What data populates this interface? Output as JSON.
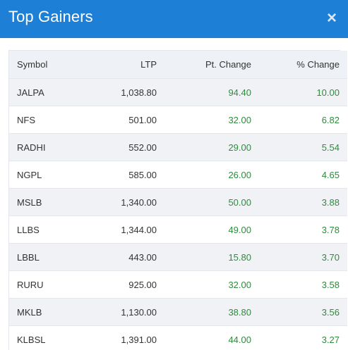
{
  "header": {
    "title": "Top Gainers",
    "close_icon": "×"
  },
  "colors": {
    "header_bg": "#1e7fd6",
    "positive": "#2e8b3c"
  },
  "table": {
    "columns": [
      "Symbol",
      "LTP",
      "Pt. Change",
      "% Change"
    ],
    "rows": [
      {
        "symbol": "JALPA",
        "ltp": "1,038.80",
        "pt_change": "94.40",
        "pct_change": "10.00"
      },
      {
        "symbol": "NFS",
        "ltp": "501.00",
        "pt_change": "32.00",
        "pct_change": "6.82"
      },
      {
        "symbol": "RADHI",
        "ltp": "552.00",
        "pt_change": "29.00",
        "pct_change": "5.54"
      },
      {
        "symbol": "NGPL",
        "ltp": "585.00",
        "pt_change": "26.00",
        "pct_change": "4.65"
      },
      {
        "symbol": "MSLB",
        "ltp": "1,340.00",
        "pt_change": "50.00",
        "pct_change": "3.88"
      },
      {
        "symbol": "LLBS",
        "ltp": "1,344.00",
        "pt_change": "49.00",
        "pct_change": "3.78"
      },
      {
        "symbol": "LBBL",
        "ltp": "443.00",
        "pt_change": "15.80",
        "pct_change": "3.70"
      },
      {
        "symbol": "RURU",
        "ltp": "925.00",
        "pt_change": "32.00",
        "pct_change": "3.58"
      },
      {
        "symbol": "MKLB",
        "ltp": "1,130.00",
        "pt_change": "38.80",
        "pct_change": "3.56"
      },
      {
        "symbol": "KLBSL",
        "ltp": "1,391.00",
        "pt_change": "44.00",
        "pct_change": "3.27"
      }
    ]
  }
}
